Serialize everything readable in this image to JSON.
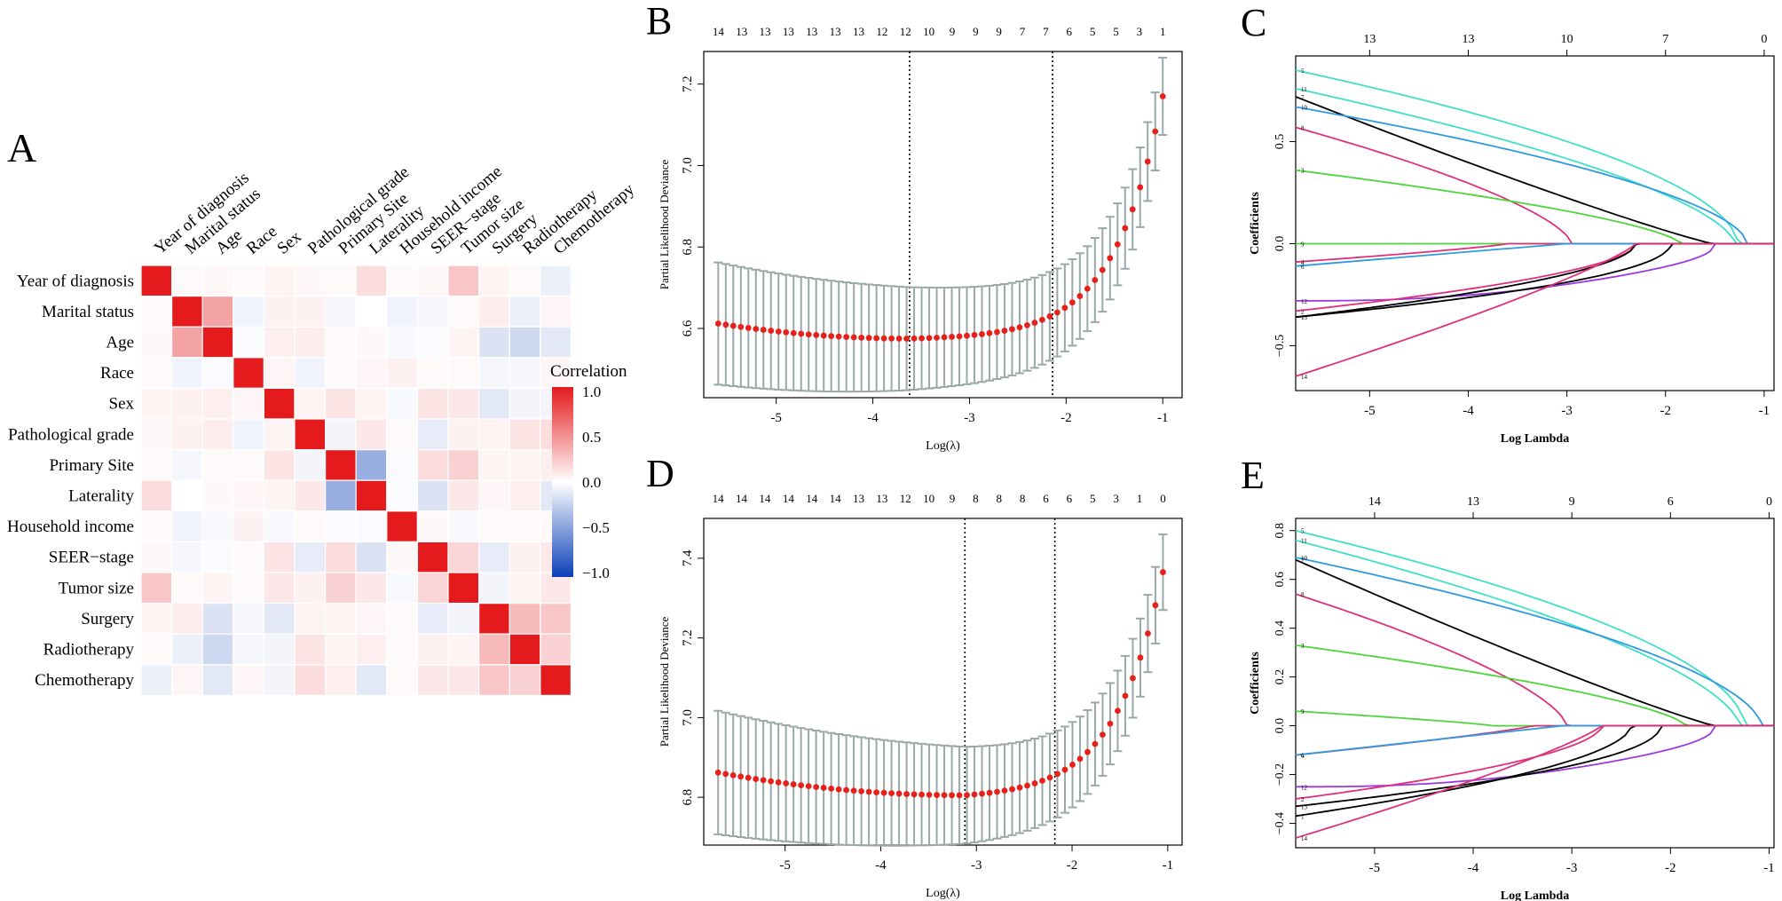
{
  "chart_data": [
    {
      "panel": "A",
      "type": "heatmap",
      "variables": [
        "Year of diagnosis",
        "Marital status",
        "Age",
        "Race",
        "Sex",
        "Pathological grade",
        "Primary Site",
        "Laterality",
        "Household income",
        "SEER−stage",
        "Tumor size",
        "Surgery",
        "Radiotherapy",
        "Chemotherapy"
      ],
      "matrix": [
        [
          1.0,
          0.02,
          0.03,
          0.02,
          0.05,
          0.03,
          0.02,
          0.15,
          0.02,
          0.03,
          0.25,
          0.05,
          0.02,
          -0.08
        ],
        [
          0.02,
          1.0,
          0.4,
          -0.06,
          0.06,
          0.06,
          -0.04,
          0.0,
          -0.06,
          -0.04,
          0.02,
          0.08,
          -0.08,
          0.04
        ],
        [
          0.03,
          0.4,
          1.0,
          -0.02,
          0.07,
          0.08,
          0.02,
          0.03,
          -0.03,
          -0.02,
          0.05,
          -0.15,
          -0.2,
          -0.12
        ],
        [
          0.02,
          -0.06,
          -0.02,
          1.0,
          0.04,
          -0.06,
          0.02,
          0.04,
          0.06,
          0.02,
          0.02,
          -0.04,
          -0.04,
          0.04
        ],
        [
          0.05,
          0.06,
          0.07,
          0.04,
          1.0,
          0.05,
          0.12,
          0.05,
          -0.03,
          0.12,
          0.1,
          -0.12,
          -0.05,
          -0.05
        ],
        [
          0.03,
          0.06,
          0.08,
          -0.06,
          0.05,
          1.0,
          -0.05,
          0.1,
          0.02,
          -0.1,
          0.06,
          0.05,
          0.12,
          0.15
        ],
        [
          0.02,
          -0.04,
          0.02,
          0.02,
          0.12,
          -0.05,
          1.0,
          -0.42,
          -0.02,
          0.15,
          0.2,
          0.05,
          0.05,
          0.07
        ],
        [
          0.15,
          0.0,
          0.03,
          0.04,
          0.05,
          0.1,
          -0.42,
          1.0,
          -0.02,
          -0.15,
          0.1,
          0.04,
          0.07,
          -0.12
        ],
        [
          0.02,
          -0.06,
          -0.03,
          0.06,
          -0.03,
          0.02,
          -0.02,
          -0.02,
          1.0,
          0.03,
          -0.03,
          0.02,
          0.02,
          0.02
        ],
        [
          0.03,
          -0.04,
          -0.02,
          0.02,
          0.12,
          -0.1,
          0.15,
          -0.15,
          0.03,
          1.0,
          0.18,
          -0.1,
          0.06,
          0.1
        ],
        [
          0.25,
          0.02,
          0.05,
          0.02,
          0.1,
          0.06,
          0.2,
          0.1,
          -0.03,
          0.18,
          1.0,
          -0.05,
          0.05,
          0.1
        ],
        [
          0.05,
          0.08,
          -0.15,
          -0.04,
          -0.12,
          0.05,
          0.05,
          0.04,
          0.02,
          -0.1,
          -0.05,
          1.0,
          0.3,
          0.25
        ],
        [
          0.02,
          -0.08,
          -0.2,
          -0.04,
          -0.05,
          0.12,
          0.05,
          0.07,
          0.02,
          0.06,
          0.05,
          0.3,
          1.0,
          0.2
        ],
        [
          -0.08,
          0.04,
          -0.12,
          0.04,
          -0.05,
          0.15,
          0.07,
          -0.12,
          0.02,
          0.1,
          0.1,
          0.25,
          0.2,
          1.0
        ]
      ],
      "legend_title": "Correlation",
      "legend_ticks": [
        "1.0",
        "0.5",
        "0.0",
        "−0.5",
        "−1.0"
      ],
      "colors": {
        "pos": "#e41a1c",
        "neg": "#0b3fb8",
        "grid": "#ffffff"
      }
    },
    {
      "panel": "B",
      "type": "scatter",
      "xlabel": "Log(λ)",
      "ylabel": "Partial Likelihood Deviance",
      "xlim": [
        -5.75,
        -0.8
      ],
      "ylim": [
        6.43,
        7.28
      ],
      "x_ticks": [
        -5,
        -4,
        -3,
        -2,
        -1
      ],
      "y_ticks": [
        "6.6",
        "6.8",
        "7.0",
        "7.2"
      ],
      "top_counts": [
        "14",
        "13",
        "13",
        "13",
        "13",
        "13",
        "13",
        "12",
        "12",
        "10",
        "9",
        "9",
        "9",
        "7",
        "7",
        "6",
        "5",
        "5",
        "3",
        "1"
      ],
      "top_counts_range": [
        -5.6,
        -1.0
      ],
      "vlines": [
        -3.62,
        -2.14
      ],
      "n_points": 60,
      "x_range": [
        -5.6,
        -1.0
      ],
      "curve": {
        "base": 6.612,
        "min_x": -3.62,
        "min_y": 6.575,
        "end_y": 7.17,
        "k": 2.0
      },
      "err": {
        "left": 0.15,
        "right": 0.095
      },
      "colors": {
        "point": "#e8201a",
        "errorbar": "#9aa8a8"
      }
    },
    {
      "panel": "C",
      "type": "line",
      "xlabel": "Log Lambda",
      "ylabel": "Coefficients",
      "xlim": [
        -5.75,
        -0.9
      ],
      "ylim": [
        -0.72,
        0.92
      ],
      "x_ticks": [
        -5,
        -4,
        -3,
        -2,
        -1
      ],
      "y_ticks": [
        "−0.5",
        "0.0",
        "0.5"
      ],
      "top_ticks": [
        {
          "x": -5.0,
          "label": "13"
        },
        {
          "x": -4.0,
          "label": "13"
        },
        {
          "x": -3.0,
          "label": "10"
        },
        {
          "x": -2.0,
          "label": "7"
        },
        {
          "x": -1.0,
          "label": "0"
        }
      ],
      "series": [
        {
          "label": "5",
          "c0": 0.85,
          "z": -1.27,
          "curv": 1.8,
          "color": "#40e0c8"
        },
        {
          "label": "11",
          "c0": 0.76,
          "z": -1.3,
          "curv": 1.6,
          "color": "#40e0c8"
        },
        {
          "label": "7",
          "c0": 0.72,
          "z": -1.52,
          "curv": 0.9,
          "color": "#000000"
        },
        {
          "label": "10",
          "c0": 0.67,
          "z": -1.17,
          "curv": 1.7,
          "color": "#2e9ae0"
        },
        {
          "label": "8",
          "c0": 0.57,
          "z": -2.95,
          "curv": 1.5,
          "color": "#e0307a"
        },
        {
          "label": "3",
          "c0": 0.36,
          "z": -1.85,
          "curv": 1.5,
          "color": "#4cd63a"
        },
        {
          "label": "9",
          "c0": 0.0,
          "z": -5.6,
          "curv": 1.0,
          "color": "#4cd63a"
        },
        {
          "label": "4",
          "c0": -0.09,
          "z": -3.6,
          "curv": 1.2,
          "color": "#e0307a"
        },
        {
          "label": "6",
          "c0": -0.11,
          "z": -3.0,
          "curv": 1.0,
          "color": "#2e9ae0"
        },
        {
          "label": "12",
          "c0": -0.28,
          "z": -1.5,
          "shape": "hump",
          "color": "#9a3ae0"
        },
        {
          "label": "2",
          "c0": -0.33,
          "z": -2.3,
          "curv": 1.8,
          "color": "#e0307a"
        },
        {
          "label": "1",
          "c0": -0.36,
          "z": -2.3,
          "curv": 1.8,
          "color": "#000000"
        },
        {
          "label": "13",
          "c0": -0.36,
          "z": -1.95,
          "curv": 2.0,
          "color": "#000000"
        },
        {
          "label": "14",
          "c0": -0.65,
          "z": -2.3,
          "curv": 1.2,
          "color": "#e0307a"
        }
      ]
    },
    {
      "panel": "D",
      "type": "scatter",
      "xlabel": "Log(λ)",
      "ylabel": "Partial Likelihood Deviance",
      "xlim": [
        -5.85,
        -0.85
      ],
      "ylim": [
        6.68,
        7.5
      ],
      "x_ticks": [
        -5,
        -4,
        -3,
        -2,
        -1
      ],
      "y_ticks": [
        "6.8",
        "7.0",
        "7.2",
        "7.4"
      ],
      "top_counts": [
        "14",
        "14",
        "14",
        "14",
        "14",
        "14",
        "13",
        "13",
        "12",
        "10",
        "9",
        "8",
        "8",
        "8",
        "6",
        "6",
        "5",
        "3",
        "1",
        "0"
      ],
      "top_counts_range": [
        -5.7,
        -1.05
      ],
      "vlines": [
        -3.12,
        -2.18
      ],
      "n_points": 60,
      "x_range": [
        -5.7,
        -1.05
      ],
      "curve": {
        "base": 6.862,
        "min_x": -3.12,
        "min_y": 6.805,
        "end_y": 7.365,
        "k": 2.0
      },
      "err": {
        "left": 0.155,
        "right": 0.095
      },
      "colors": {
        "point": "#e8201a",
        "errorbar": "#9aa8a8"
      }
    },
    {
      "panel": "E",
      "type": "line",
      "xlabel": "Log Lambda",
      "ylabel": "Coefficients",
      "xlim": [
        -5.8,
        -0.95
      ],
      "ylim": [
        -0.5,
        0.85
      ],
      "x_ticks": [
        -5,
        -4,
        -3,
        -2,
        -1
      ],
      "y_ticks": [
        "−0.4",
        "−0.2",
        "0.0",
        "0.2",
        "0.4",
        "0.6",
        "0.8"
      ],
      "top_ticks": [
        {
          "x": -5.0,
          "label": "14"
        },
        {
          "x": -4.0,
          "label": "13"
        },
        {
          "x": -3.0,
          "label": "9"
        },
        {
          "x": -2.0,
          "label": "6"
        },
        {
          "x": -1.0,
          "label": "0"
        }
      ],
      "series": [
        {
          "label": "5",
          "c0": 0.8,
          "z": -1.25,
          "curv": 1.8,
          "color": "#40e0c8"
        },
        {
          "label": "11",
          "c0": 0.76,
          "z": -1.3,
          "curv": 1.6,
          "color": "#40e0c8"
        },
        {
          "label": "10",
          "c0": 0.69,
          "z": -1.08,
          "curv": 1.7,
          "color": "#2e9ae0"
        },
        {
          "label": "7",
          "c0": 0.68,
          "z": -1.55,
          "curv": 0.9,
          "color": "#000000"
        },
        {
          "label": "8",
          "c0": 0.54,
          "z": -3.05,
          "curv": 1.5,
          "color": "#e0307a"
        },
        {
          "label": "3",
          "c0": 0.33,
          "z": -1.85,
          "curv": 1.5,
          "color": "#4cd63a"
        },
        {
          "label": "9",
          "c0": 0.06,
          "z": -3.8,
          "curv": 1.2,
          "color": "#4cd63a"
        },
        {
          "label": "4",
          "c0": -0.12,
          "z": -3.4,
          "curv": 1.2,
          "color": "#e0307a"
        },
        {
          "label": "6",
          "c0": -0.12,
          "z": -3.1,
          "curv": 1.0,
          "color": "#2e9ae0"
        },
        {
          "label": "12",
          "c0": -0.25,
          "z": -1.55,
          "shape": "hump",
          "color": "#9a3ae0"
        },
        {
          "label": "2",
          "c0": -0.3,
          "z": -2.7,
          "curv": 1.8,
          "color": "#e0307a"
        },
        {
          "label": "13",
          "c0": -0.33,
          "z": -2.1,
          "curv": 2.0,
          "color": "#000000"
        },
        {
          "label": "1",
          "c0": -0.37,
          "z": -2.4,
          "curv": 1.8,
          "color": "#000000"
        },
        {
          "label": "14",
          "c0": -0.46,
          "z": -2.7,
          "curv": 1.2,
          "color": "#e0307a"
        }
      ]
    }
  ]
}
